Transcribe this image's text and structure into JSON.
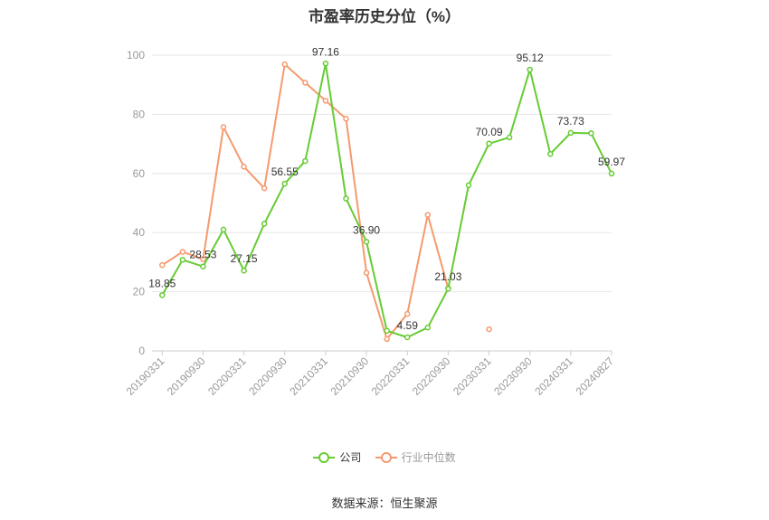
{
  "chart_data": {
    "type": "line",
    "title": "市盈率历史分位（%）",
    "ylim": [
      0,
      100
    ],
    "yticks": [
      0,
      20,
      40,
      60,
      80,
      100
    ],
    "grid": "horizontal",
    "x_tick_labels": [
      "20190331",
      "20190930",
      "20200331",
      "20200930",
      "20210331",
      "20210930",
      "20220331",
      "20220930",
      "20230331",
      "20230930",
      "20240331",
      "20240827"
    ],
    "x": [
      "20190331",
      "20190630",
      "20190930",
      "20191231",
      "20200331",
      "20200630",
      "20200930",
      "20201231",
      "20210331",
      "20210630",
      "20210930",
      "20211231",
      "20220331",
      "20220630",
      "20220930",
      "20221231",
      "20230331",
      "20230630",
      "20230930",
      "20231231",
      "20240331",
      "20240630",
      "20240827"
    ],
    "series": [
      {
        "name": "公司",
        "color": "#66cc33",
        "values": [
          18.85,
          30.8,
          28.53,
          41.0,
          27.15,
          43.0,
          56.55,
          64.2,
          97.16,
          51.5,
          36.9,
          6.8,
          4.59,
          7.9,
          21.03,
          56.0,
          70.09,
          72.2,
          95.12,
          66.6,
          73.73,
          73.6,
          59.97
        ],
        "labels": {
          "0": "18.85",
          "2": "28.53",
          "4": "27.15",
          "6": "56.55",
          "8": "97.16",
          "10": "36.90",
          "12": "4.59",
          "14": "21.03",
          "16": "70.09",
          "18": "95.12",
          "20": "73.73",
          "22": "59.97"
        }
      },
      {
        "name": "行业中位数",
        "color": "#f59a6e",
        "values": [
          29.0,
          33.5,
          31.0,
          75.7,
          62.3,
          55.0,
          96.9,
          90.7,
          84.6,
          78.5,
          26.4,
          4.0,
          12.5,
          46.0,
          21.2,
          null,
          7.3,
          null,
          null,
          null,
          null,
          null,
          null
        ]
      }
    ],
    "legend": [
      {
        "label": "公司",
        "color": "#66cc33"
      },
      {
        "label": "行业中位数",
        "color": "#f59a6e"
      }
    ],
    "legend_position": "bottom"
  },
  "footer": {
    "source": "数据来源：恒生聚源"
  }
}
